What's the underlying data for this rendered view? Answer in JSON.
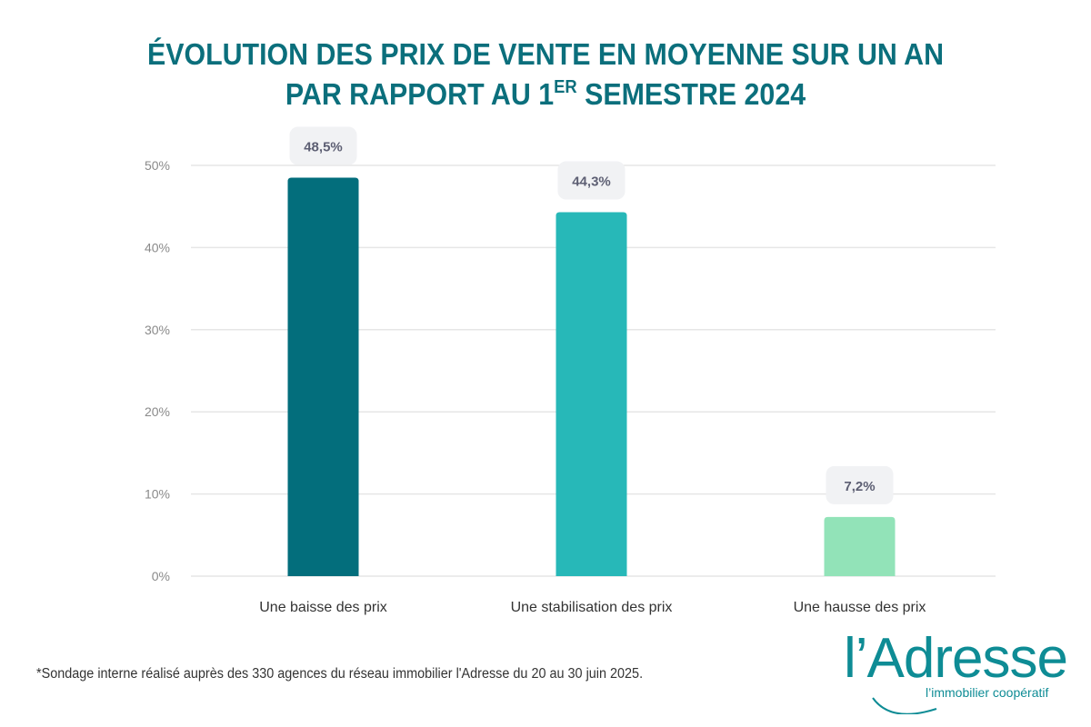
{
  "header": {
    "title_line1": "ÉVOLUTION DES PRIX DE VENTE EN MOYENNE SUR UN AN",
    "title_line2_prefix": "PAR RAPPORT AU 1",
    "title_line2_sup": "ER",
    "title_line2_suffix": " SEMESTRE 2024"
  },
  "chart_data": {
    "type": "bar",
    "title": "ÉVOLUTION DES PRIX DE VENTE EN MOYENNE SUR UN AN PAR RAPPORT AU 1ER SEMESTRE 2024",
    "xlabel": "",
    "ylabel": "",
    "categories": [
      "Une baisse des prix",
      "Une stabilisation des prix",
      "Une hausse des prix"
    ],
    "values": [
      48.5,
      44.3,
      7.2
    ],
    "data_labels": [
      "48,5%",
      "44,3%",
      "7,2%"
    ],
    "colors": [
      "#036e7c",
      "#27b8b8",
      "#92e3b8"
    ],
    "ylim": [
      0,
      50
    ],
    "yticks": [
      0,
      10,
      20,
      30,
      40,
      50
    ],
    "ytick_labels": [
      "0%",
      "10%",
      "20%",
      "30%",
      "40%",
      "50%"
    ],
    "grid": true,
    "legend": "none"
  },
  "footer": {
    "footnote": "*Sondage interne réalisé auprès des 330 agences du réseau immobilier l'Adresse du 20 au 30 juin 2025."
  },
  "logo": {
    "name": "l’Adresse",
    "tagline": "l’immobilier coopératif",
    "color": "#0e8c95"
  }
}
